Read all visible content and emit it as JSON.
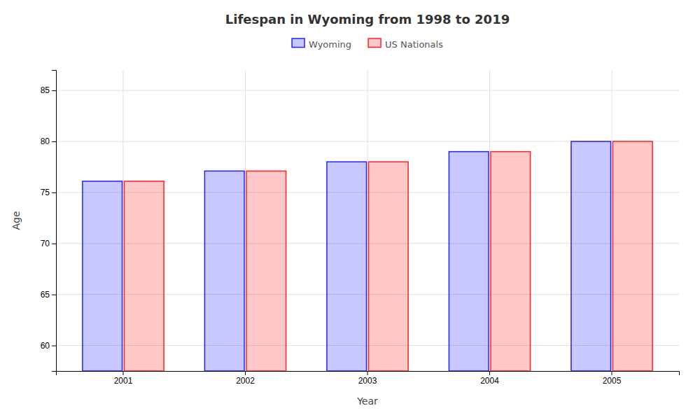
{
  "chart_data": {
    "type": "bar",
    "title": "Lifespan in Wyoming from 1998 to 2019",
    "x_label": "Year",
    "y_label": "Age",
    "categories": [
      2001,
      2002,
      2003,
      2004,
      2005
    ],
    "series": [
      {
        "name": "Wyoming",
        "color": "#2222ff",
        "values": [
          76.1,
          77.1,
          78.0,
          79.0,
          80.0
        ]
      },
      {
        "name": "US Nationals",
        "color": "#ff2222",
        "values": [
          76.1,
          77.1,
          78.0,
          79.0,
          80.0
        ]
      }
    ],
    "ylim": [
      57.5,
      87
    ],
    "yticks": [
      60,
      65,
      70,
      75,
      80,
      85
    ],
    "grid": true,
    "legend": "top"
  }
}
